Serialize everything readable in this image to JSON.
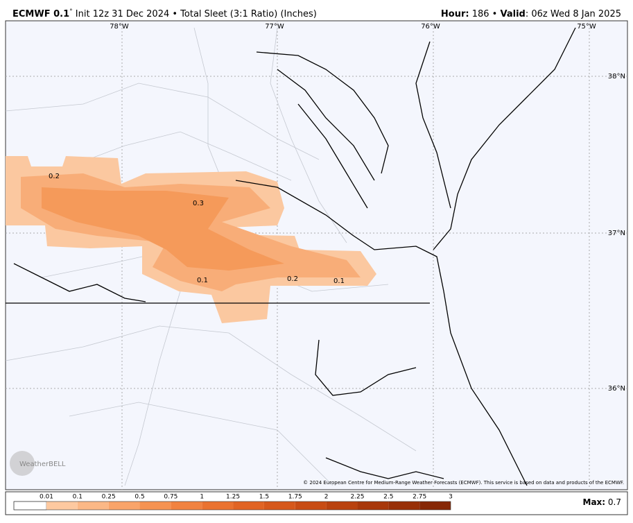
{
  "header": {
    "model": "ECMWF 0.1",
    "degree": "°",
    "run": " Init 12z 31 Dec 2024 • Total Sleet (3:1 Ratio) (Inches)",
    "hour_label": "Hour:",
    "hour": " 186 • ",
    "valid_label": "Valid",
    "valid": ": 06z Wed 8 Jan 2025"
  },
  "map": {
    "longitudes": [
      "78°W",
      "77°W",
      "76°W",
      "75°W"
    ],
    "latitudes": [
      "38°N",
      "37°N",
      "36°N"
    ],
    "contour_labels": [
      "0.2",
      "0.3",
      "0.1",
      "0.2",
      "0.1"
    ],
    "copyright": "© 2024 European Centre for Medium-Range Weather Forecasts (ECMWF). This service is based on data and products of the ECMWF.",
    "logo": "WeatherBELL"
  },
  "legend": {
    "labels": [
      "0.01",
      "0.1",
      "0.25",
      "0.5",
      "0.75",
      "1",
      "1.25",
      "1.5",
      "1.75",
      "2",
      "2.25",
      "2.5",
      "2.75",
      "3"
    ],
    "colors": [
      "#fdc9a0",
      "#fbb886",
      "#f9a46a",
      "#f69352",
      "#f18240",
      "#ea7230",
      "#e16424",
      "#d6581b",
      "#c84c14",
      "#b9420f",
      "#a8380b",
      "#983008",
      "#862806"
    ],
    "max_label": "Max:",
    "max": " 0.7"
  }
}
